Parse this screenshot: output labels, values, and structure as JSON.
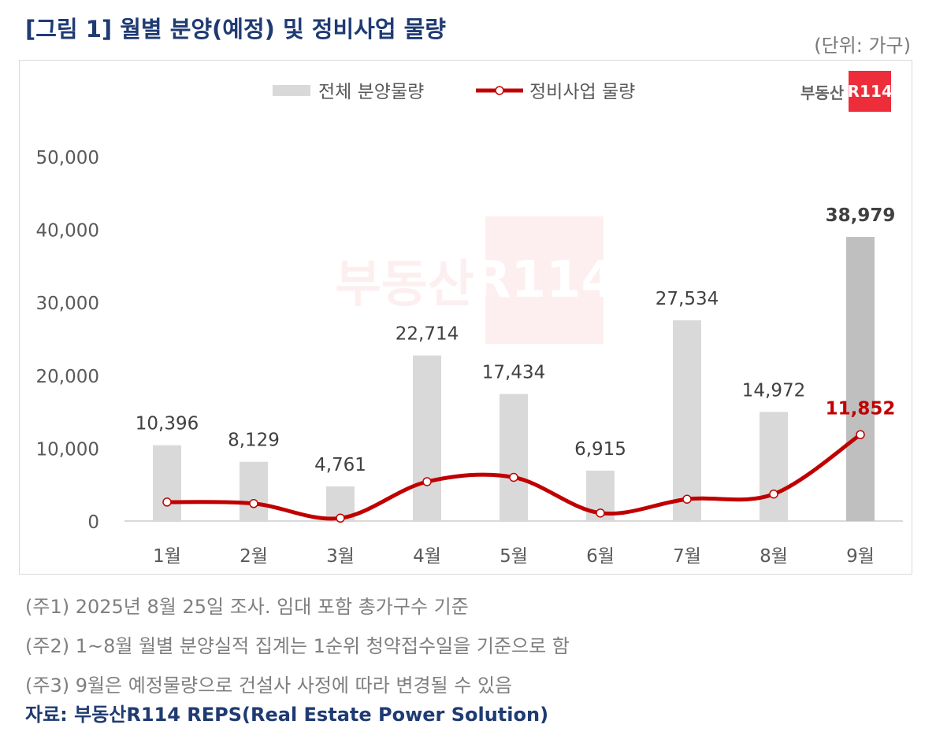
{
  "title": "[그림 1] 월별 분양(예정) 및 정비사업 물량",
  "unit": "(단위: 가구)",
  "logo": {
    "text": "부동산R114",
    "korean": "부동산",
    "mark": "R114"
  },
  "notes": [
    "(주1) 2025년 8월 25일 조사. 임대 포함 총가구수 기준",
    "(주2) 1~8월 월별 분양실적 집계는 1순위 청약접수일을 기준으로 함",
    "(주3) 9월은 예정물량으로 건설사 사정에 따라 변경될 수 있음"
  ],
  "source": "자료: 부동산R114 REPS(Real Estate Power Solution)",
  "colors": {
    "bar": "#d9d9d9",
    "bar_highlight": "#bfbfbf",
    "line": "#c00000",
    "title": "#1f3b73"
  },
  "chart_data": {
    "type": "bar+line",
    "categories": [
      "1월",
      "2월",
      "3월",
      "4월",
      "5월",
      "6월",
      "7월",
      "8월",
      "9월"
    ],
    "series": [
      {
        "name": "전체 분양물량",
        "type": "bar",
        "values": [
          10396,
          8129,
          4761,
          22714,
          17434,
          6915,
          27534,
          14972,
          38979
        ],
        "labels": [
          "10,396",
          "8,129",
          "4,761",
          "22,714",
          "17,434",
          "6,915",
          "27,534",
          "14,972",
          "38,979"
        ]
      },
      {
        "name": "정비사업 물량",
        "type": "line",
        "values": [
          2600,
          2400,
          400,
          5400,
          6000,
          1100,
          3000,
          3700,
          11852
        ],
        "labels": [
          "",
          "",
          "",
          "",
          "",
          "",
          "",
          "",
          "11,852"
        ]
      }
    ],
    "ylim": [
      0,
      50000
    ],
    "yticks": [
      "0",
      "10,000",
      "20,000",
      "30,000",
      "40,000",
      "50,000"
    ],
    "legend": "top-center",
    "grid": false
  }
}
